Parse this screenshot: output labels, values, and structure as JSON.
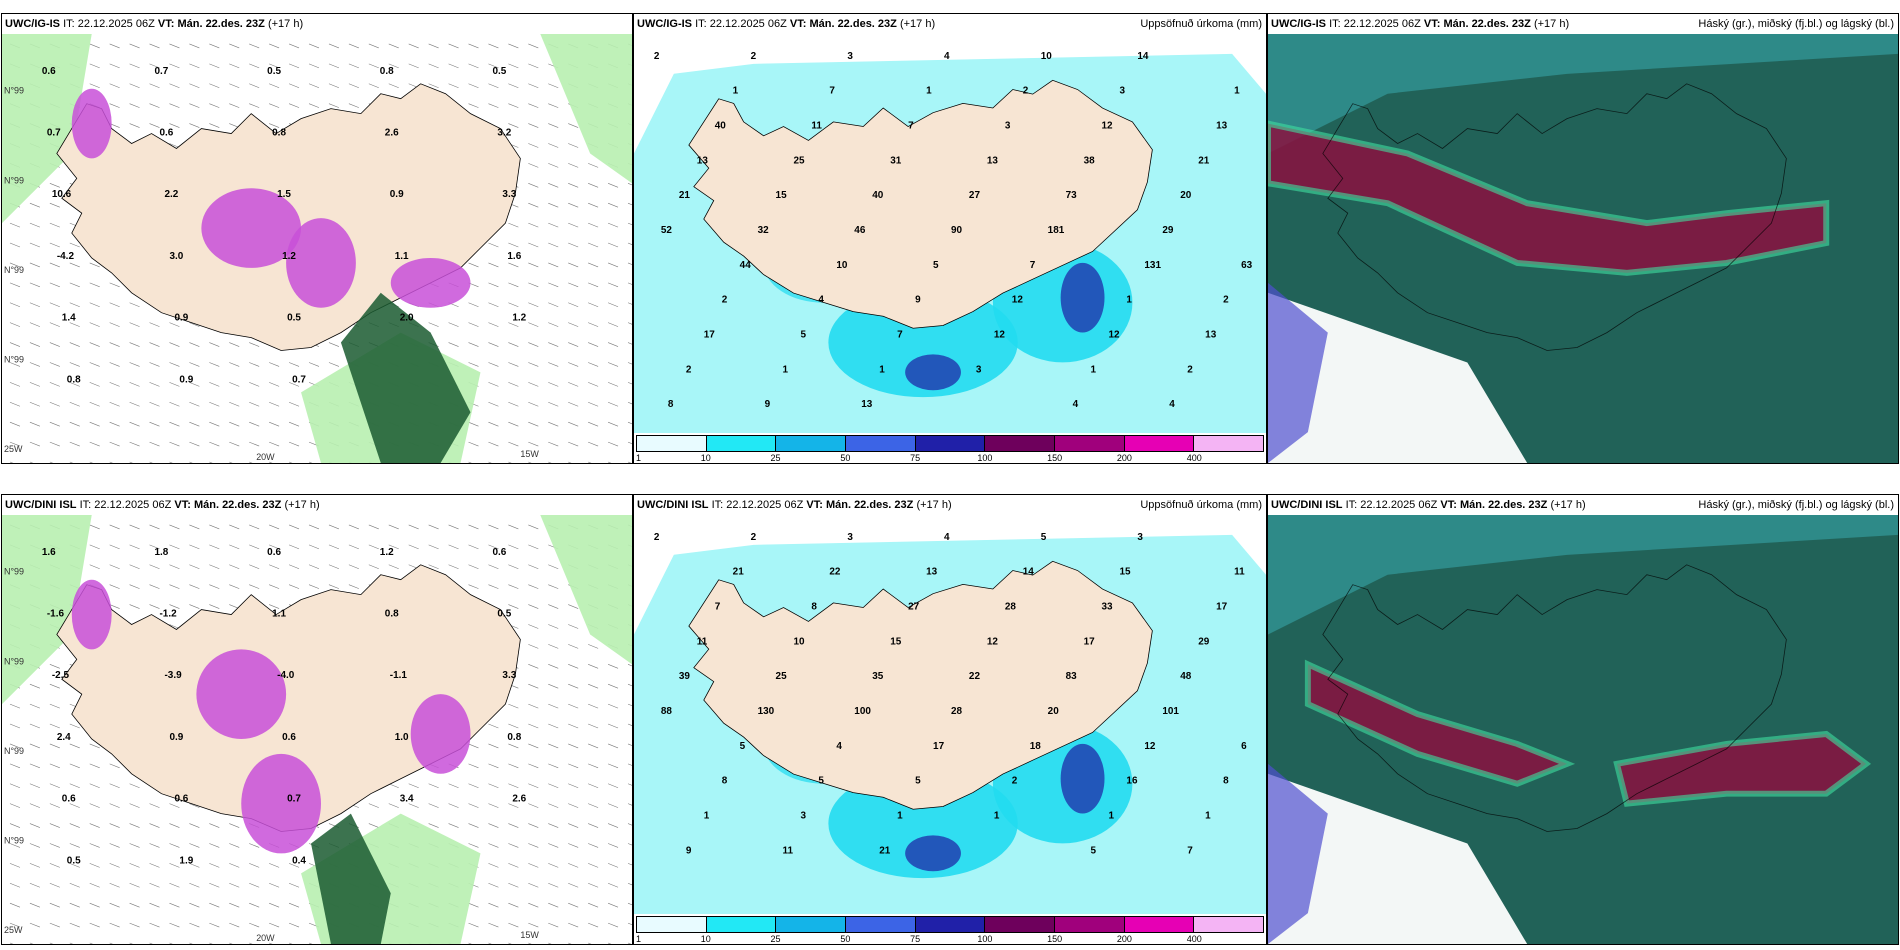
{
  "rows": [
    {
      "model": "UWC/IG-IS",
      "panels": [
        {
          "title": "",
          "value_labels": [
            "0.6",
            "0.7",
            "0.5",
            "0.8",
            "0.5",
            "0.7",
            "0.6",
            "0.8",
            "2.6",
            "3.2",
            "10.6",
            "2.2",
            "1.5",
            "0.9",
            "3.3",
            "-4.2",
            "3.0",
            "1.2",
            "1.1",
            "1.6",
            "1.4",
            "0.9",
            "0.5",
            "2.0",
            "1.2",
            "0.8",
            "0.9",
            "0.7"
          ],
          "lat_labels": [
            "N°99",
            "N°99",
            "N°99",
            "N°99"
          ],
          "lon_labels": [
            "20W",
            "15W",
            "25W"
          ]
        },
        {
          "title": "Uppsöfnuð úrkoma (mm)",
          "value_labels": [
            "2",
            "2",
            "3",
            "4",
            "10",
            "14",
            "1",
            "1",
            "7",
            "1",
            "2",
            "3",
            "13",
            "40",
            "11",
            "7",
            "3",
            "12",
            "21",
            "13",
            "25",
            "31",
            "13",
            "38",
            "20",
            "21",
            "15",
            "40",
            "27",
            "73",
            "29",
            "52",
            "32",
            "46",
            "90",
            "181",
            "131",
            "63",
            "44",
            "10",
            "5",
            "7",
            "1",
            "2",
            "2",
            "4",
            "9",
            "12",
            "12",
            "13",
            "17",
            "5",
            "7",
            "12",
            "1",
            "2",
            "2",
            "1",
            "1",
            "3",
            "4",
            "4",
            "8",
            "9",
            "13"
          ]
        },
        {
          "title": "Háský (gr.), miðský (fj.bl.) og lágský (bl.)"
        }
      ]
    },
    {
      "model": "UWC/DINI ISL",
      "panels": [
        {
          "title": "",
          "value_labels": [
            "1.6",
            "1.8",
            "0.6",
            "1.2",
            "0.6",
            "-1.6",
            "-1.2",
            "1.1",
            "0.8",
            "0.5",
            "-2.5",
            "-3.9",
            "-4.0",
            "-1.1",
            "3.3",
            "2.4",
            "0.9",
            "0.6",
            "1.0",
            "0.8",
            "0.6",
            "0.6",
            "0.7",
            "3.4",
            "2.6",
            "0.5",
            "1.9",
            "0.4"
          ],
          "lat_labels": [
            "N°99",
            "N°99",
            "N°99",
            "N°99"
          ],
          "lon_labels": [
            "20W",
            "15W",
            "25W"
          ]
        },
        {
          "title": "Uppsöfnuð úrkoma (mm)",
          "value_labels": [
            "2",
            "2",
            "3",
            "4",
            "5",
            "3",
            "11",
            "21",
            "22",
            "13",
            "14",
            "15",
            "17",
            "7",
            "8",
            "27",
            "28",
            "33",
            "29",
            "11",
            "10",
            "15",
            "12",
            "17",
            "48",
            "39",
            "25",
            "35",
            "22",
            "83",
            "101",
            "88",
            "130",
            "100",
            "28",
            "20",
            "12",
            "6",
            "5",
            "4",
            "17",
            "18",
            "16",
            "8",
            "8",
            "5",
            "5",
            "2",
            "1",
            "1",
            "1",
            "3",
            "1",
            "1",
            "5",
            "7",
            "9",
            "11",
            "21"
          ]
        },
        {
          "title": "Háský (gr.), miðský (fj.bl.) og lágský (bl.)"
        }
      ]
    }
  ],
  "header": {
    "it_prefix": "IT:",
    "it_time": "22.12.2025 06Z",
    "vt_prefix": "VT:",
    "vt_time": "Mán. 22.des. 23Z",
    "lead": "(+17 h)"
  },
  "colorbar": {
    "ticks": [
      "1",
      "10",
      "25",
      "50",
      "75",
      "100",
      "150",
      "200",
      "400"
    ],
    "colors": [
      "#e8fbff",
      "#22e8f5",
      "#14b4e8",
      "#3c64e6",
      "#2020a8",
      "#6e005c",
      "#a0007c",
      "#e600b4",
      "#f4b4f4"
    ]
  },
  "colors": {
    "land": "#f7e5d3",
    "sea": "#ffffff",
    "precip_light": "#a8f6f8",
    "precip_mid": "#22dcef",
    "green_light": "#b8f0b0",
    "green_dark": "#1a5a30",
    "magenta": "#c850d8",
    "cloud_dark": "#1e5a50",
    "cloud_teal": "#2e8a88",
    "cloud_red": "#8a1040",
    "cloud_blue": "#5050d0"
  }
}
